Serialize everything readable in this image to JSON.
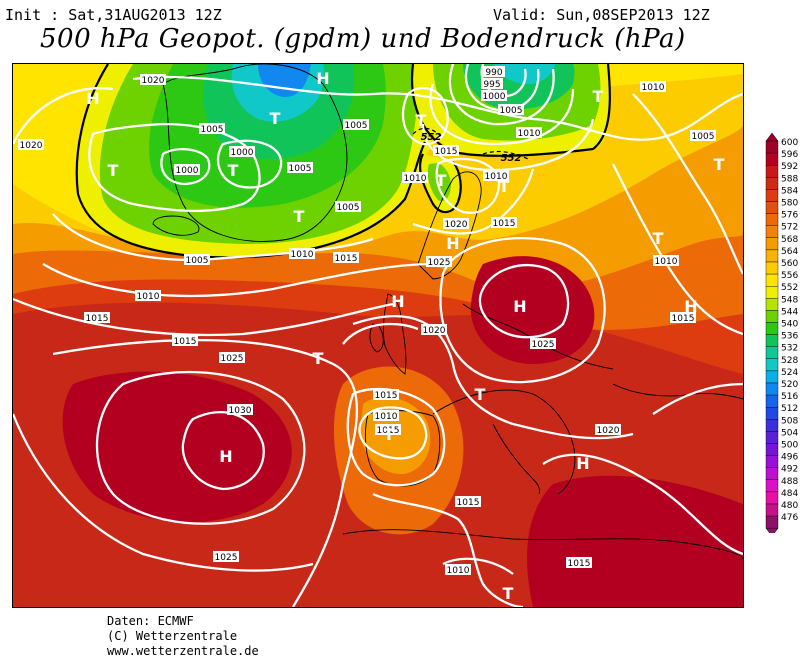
{
  "header": {
    "init": "Init : Sat,31AUG2013 12Z",
    "valid": "Valid: Sun,08SEP2013 12Z",
    "title": "500 hPa Geopot. (gpdm) und Bodendruck (hPa)"
  },
  "credits": [
    "Daten: ECMWF",
    "(C) Wetterzentrale",
    "www.wetterzentrale.de"
  ],
  "legend": {
    "levels": [
      "600",
      "596",
      "592",
      "588",
      "584",
      "580",
      "576",
      "572",
      "568",
      "564",
      "560",
      "556",
      "552",
      "548",
      "544",
      "540",
      "536",
      "532",
      "528",
      "524",
      "520",
      "516",
      "512",
      "508",
      "504",
      "500",
      "496",
      "492",
      "488",
      "484",
      "480",
      "476"
    ],
    "colors": [
      "#a00028",
      "#b40020",
      "#c81818",
      "#d22814",
      "#dc3c10",
      "#e4500c",
      "#ec6a08",
      "#f08404",
      "#f49c00",
      "#f8b400",
      "#fccc00",
      "#ffe400",
      "#eef000",
      "#b4e400",
      "#6ed200",
      "#2cc814",
      "#10c45a",
      "#10c896",
      "#10c8c8",
      "#10aee6",
      "#1088f0",
      "#1464ec",
      "#2048e4",
      "#3c30dc",
      "#5a20d8",
      "#7814d8",
      "#9a10d8",
      "#bc10d0",
      "#dc10c8",
      "#e810a8",
      "#c8108a",
      "#8c106c"
    ]
  },
  "map": {
    "pressure_labels": [
      "1020",
      "1020",
      "1005",
      "1000",
      "1000",
      "1005",
      "1005",
      "1005",
      "1005",
      "1010",
      "1015",
      "1010",
      "1015",
      "990",
      "995",
      "1000",
      "1005",
      "1010",
      "1015",
      "1010",
      "1010",
      "1020",
      "1015",
      "1025",
      "1010",
      "1005",
      "1010",
      "1015",
      "1015",
      "1020",
      "1025",
      "1025",
      "1030",
      "1015",
      "1010",
      "1015",
      "1015",
      "1020",
      "1025",
      "1010",
      "1015"
    ],
    "height_labels": [
      "552",
      "552",
      "552"
    ],
    "high_marks": [
      "H",
      "H",
      "H",
      "H",
      "H",
      "H",
      "H",
      "H"
    ],
    "low_marks": [
      "T",
      "T",
      "T",
      "T",
      "T",
      "T",
      "T",
      "T",
      "T",
      "T",
      "T",
      "T",
      "T",
      "T"
    ]
  }
}
